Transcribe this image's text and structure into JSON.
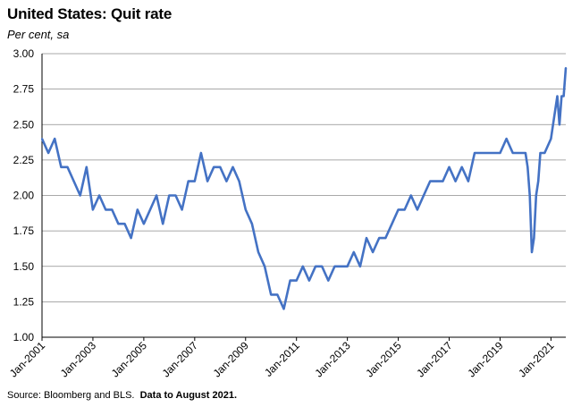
{
  "chart_data": {
    "type": "line",
    "title": "United States: Quit rate",
    "subtitle": "Per cent, sa",
    "ylim": [
      1.0,
      3.0
    ],
    "yticks": [
      "3.00",
      "2.75",
      "2.50",
      "2.25",
      "2.00",
      "1.75",
      "1.50",
      "1.25",
      "1.00"
    ],
    "ytick_values": [
      3.0,
      2.75,
      2.5,
      2.25,
      2.0,
      1.75,
      1.5,
      1.25,
      1.0
    ],
    "xlim": [
      "2001-01",
      "2021-08"
    ],
    "xticks": [
      "Jan-2001",
      "Jan-2003",
      "Jan-2005",
      "Jan-2007",
      "Jan-2009",
      "Jan-2011",
      "Jan-2013",
      "Jan-2015",
      "Jan-2017",
      "Jan-2019",
      "Jan-2021"
    ],
    "grid": "horizontal",
    "line_color": "#4472C4",
    "series": [
      {
        "x": [
          "2001-01",
          "2001-04",
          "2001-07",
          "2001-10",
          "2002-01",
          "2002-04",
          "2002-07",
          "2002-10",
          "2003-01",
          "2003-04",
          "2003-07",
          "2003-10",
          "2004-01",
          "2004-04",
          "2004-07",
          "2004-10",
          "2005-01",
          "2005-04",
          "2005-07",
          "2005-10",
          "2006-01",
          "2006-04",
          "2006-07",
          "2006-10",
          "2007-01",
          "2007-04",
          "2007-07",
          "2007-10",
          "2008-01",
          "2008-04",
          "2008-07",
          "2008-10",
          "2009-01",
          "2009-04",
          "2009-07",
          "2009-10",
          "2010-01",
          "2010-04",
          "2010-07",
          "2010-10",
          "2011-01",
          "2011-04",
          "2011-07",
          "2011-10",
          "2012-01",
          "2012-04",
          "2012-07",
          "2012-10",
          "2013-01",
          "2013-04",
          "2013-07",
          "2013-10",
          "2014-01",
          "2014-04",
          "2014-07",
          "2014-10",
          "2015-01",
          "2015-04",
          "2015-07",
          "2015-10",
          "2016-01",
          "2016-04",
          "2016-07",
          "2016-10",
          "2017-01",
          "2017-04",
          "2017-07",
          "2017-10",
          "2018-01",
          "2018-04",
          "2018-07",
          "2018-10",
          "2019-01",
          "2019-04",
          "2019-07",
          "2019-10",
          "2020-01",
          "2020-02",
          "2020-03",
          "2020-04",
          "2020-05",
          "2020-06",
          "2020-07",
          "2020-08",
          "2020-10",
          "2021-01",
          "2021-03",
          "2021-04",
          "2021-05",
          "2021-06",
          "2021-07",
          "2021-08"
        ],
        "values": [
          2.4,
          2.3,
          2.4,
          2.2,
          2.2,
          2.1,
          2.0,
          2.2,
          1.9,
          2.0,
          1.9,
          1.9,
          1.8,
          1.8,
          1.7,
          1.9,
          1.8,
          1.9,
          2.0,
          1.8,
          2.0,
          2.0,
          1.9,
          2.1,
          2.1,
          2.3,
          2.1,
          2.2,
          2.2,
          2.1,
          2.2,
          2.1,
          1.9,
          1.8,
          1.6,
          1.5,
          1.3,
          1.3,
          1.2,
          1.4,
          1.4,
          1.5,
          1.4,
          1.5,
          1.5,
          1.4,
          1.5,
          1.5,
          1.5,
          1.6,
          1.5,
          1.7,
          1.6,
          1.7,
          1.7,
          1.8,
          1.9,
          1.9,
          2.0,
          1.9,
          2.0,
          2.1,
          2.1,
          2.1,
          2.2,
          2.1,
          2.2,
          2.1,
          2.3,
          2.3,
          2.3,
          2.3,
          2.3,
          2.4,
          2.3,
          2.3,
          2.3,
          2.2,
          2.0,
          1.6,
          1.7,
          2.0,
          2.1,
          2.3,
          2.3,
          2.4,
          2.6,
          2.7,
          2.5,
          2.7,
          2.7,
          2.9
        ]
      }
    ],
    "source_prefix": "Source: Bloomberg and BLS.",
    "source_note": "Data to August 2021."
  }
}
